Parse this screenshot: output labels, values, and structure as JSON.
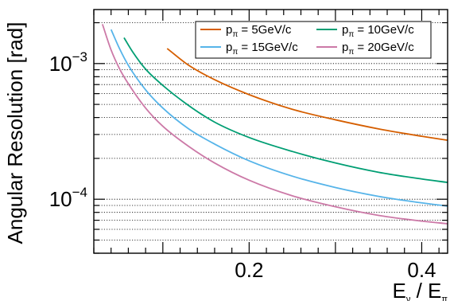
{
  "chart_data": {
    "type": "line",
    "ylabel": "Angular Resolution [rad]",
    "xlabel": "E_ν / E_π",
    "xlim": [
      0.02,
      0.43
    ],
    "ylim": [
      4e-05,
      0.0025
    ],
    "yscale": "log",
    "grid": "horizontal dotted at major and minor log ticks",
    "legend_position": "top-right",
    "x_ticks": [
      {
        "value": 0.2,
        "label": "0.2"
      },
      {
        "value": 0.4,
        "label": "0.4"
      }
    ],
    "y_ticks": [
      {
        "value": 0.001,
        "base": "10",
        "exp": "−3"
      },
      {
        "value": 0.0001,
        "base": "10",
        "exp": "−4"
      }
    ],
    "series": [
      {
        "name": "p_π =  5GeV/c",
        "name_base": "p",
        "name_sub": "π",
        "name_rest": " =  5GeV/c",
        "color": "#d55e00",
        "x": [
          0.105,
          0.13,
          0.16,
          0.2,
          0.25,
          0.3,
          0.35,
          0.4,
          0.43
        ],
        "y": [
          0.00129,
          0.00097,
          0.00076,
          0.00059,
          0.00046,
          0.000385,
          0.00033,
          0.000291,
          0.000272
        ]
      },
      {
        "name": "p_π = 10GeV/c",
        "name_base": "p",
        "name_sub": "π",
        "name_rest": " = 10GeV/c",
        "color": "#009e73",
        "x": [
          0.055,
          0.065,
          0.08,
          0.1,
          0.13,
          0.16,
          0.2,
          0.25,
          0.3,
          0.35,
          0.4,
          0.43
        ],
        "y": [
          0.00155,
          0.00122,
          0.00091,
          0.00069,
          0.00049,
          0.00037,
          0.000285,
          0.000225,
          0.000185,
          0.000158,
          0.000141,
          0.000133
        ]
      },
      {
        "name": "p_π = 15GeV/c",
        "name_base": "p",
        "name_sub": "π",
        "name_rest": " = 15GeV/c",
        "color": "#56b4e9",
        "x": [
          0.04,
          0.05,
          0.06,
          0.08,
          0.1,
          0.13,
          0.16,
          0.2,
          0.25,
          0.3,
          0.35,
          0.4,
          0.43
        ],
        "y": [
          0.00178,
          0.00128,
          0.00097,
          0.00064,
          0.00047,
          0.00033,
          0.000255,
          0.000192,
          0.000148,
          0.000122,
          0.000105,
          9.4e-05,
          8.9e-05
        ]
      },
      {
        "name": "p_π = 20GeV/c",
        "name_base": "p",
        "name_sub": "π",
        "name_rest": " = 20GeV/c",
        "color": "#cc79a7",
        "x": [
          0.03,
          0.04,
          0.05,
          0.06,
          0.08,
          0.1,
          0.13,
          0.16,
          0.2,
          0.25,
          0.3,
          0.35,
          0.4,
          0.43
        ],
        "y": [
          0.00195,
          0.00126,
          0.00091,
          0.00071,
          0.00047,
          0.000345,
          0.000245,
          0.000185,
          0.000138,
          0.000106,
          8.8e-05,
          7.6e-05,
          6.9e-05,
          6.6e-05
        ]
      }
    ]
  }
}
